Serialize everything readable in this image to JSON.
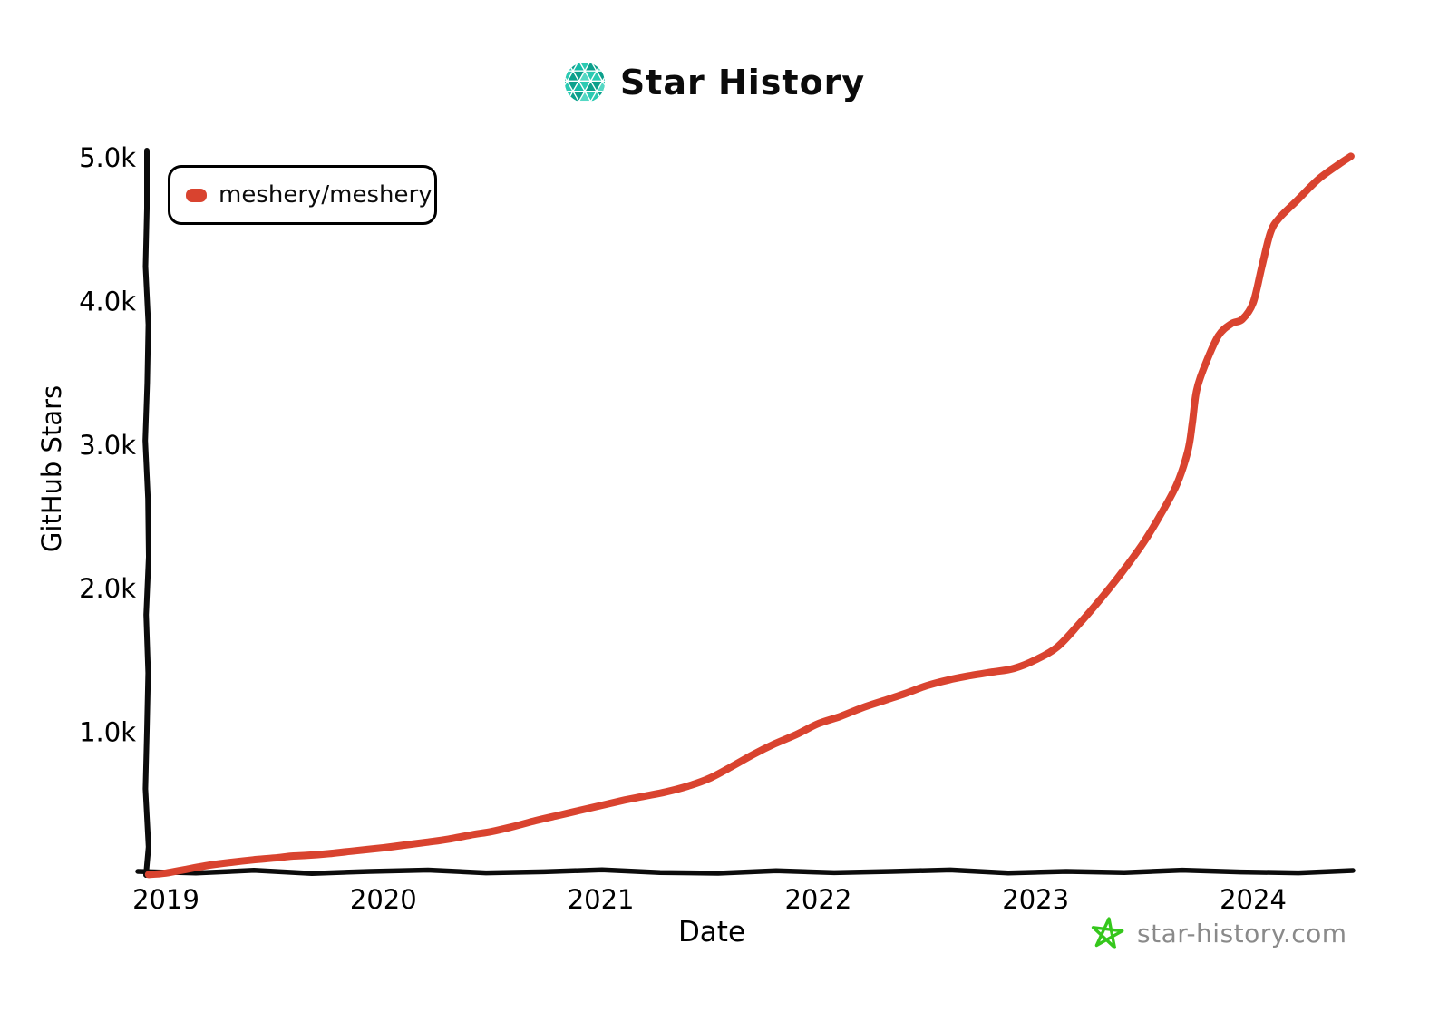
{
  "header": {
    "title": "Star History",
    "logo_icon": "star-history-logo-icon",
    "logo_palette": [
      "#16bca7",
      "#0ca08c",
      "#55d8c4",
      "#2bcab2"
    ]
  },
  "legend": {
    "series_label": "meshery/meshery",
    "marker_color": "#d9432f"
  },
  "footer": {
    "site": "star-history.com",
    "star_icon": "star-doodle-icon",
    "star_icon_color": "#35c71c",
    "text_color": "#8a8a8a"
  },
  "colors": {
    "series_red": "#d9432f",
    "axis_black": "#0b0b0b",
    "brand_teal": "#16bca7"
  },
  "chart_data": {
    "type": "line",
    "title": "Star History",
    "xlabel": "Date",
    "ylabel": "GitHub Stars",
    "grid": false,
    "legend_position": "top-left",
    "x_ticks": [
      2019,
      2020,
      2021,
      2022,
      2023,
      2024
    ],
    "y_ticks": [
      {
        "label": "1.0k",
        "value": 1000
      },
      {
        "label": "2.0k",
        "value": 2000
      },
      {
        "label": "3.0k",
        "value": 3000
      },
      {
        "label": "4.0k",
        "value": 4000
      },
      {
        "label": "5.0k",
        "value": 5000
      }
    ],
    "xlim": [
      2018.92,
      2024.5
    ],
    "ylim": [
      0,
      5100
    ],
    "series": [
      {
        "name": "meshery/meshery",
        "color": "#d9432f",
        "points": [
          [
            2018.92,
            10
          ],
          [
            2019.0,
            20
          ],
          [
            2019.1,
            48
          ],
          [
            2019.2,
            75
          ],
          [
            2019.3,
            95
          ],
          [
            2019.4,
            112
          ],
          [
            2019.5,
            125
          ],
          [
            2019.58,
            138
          ],
          [
            2019.65,
            143
          ],
          [
            2019.75,
            155
          ],
          [
            2019.85,
            172
          ],
          [
            2020.0,
            196
          ],
          [
            2020.1,
            215
          ],
          [
            2020.2,
            235
          ],
          [
            2020.3,
            256
          ],
          [
            2020.4,
            285
          ],
          [
            2020.5,
            310
          ],
          [
            2020.6,
            345
          ],
          [
            2020.7,
            385
          ],
          [
            2020.8,
            420
          ],
          [
            2020.9,
            455
          ],
          [
            2021.0,
            490
          ],
          [
            2021.1,
            525
          ],
          [
            2021.2,
            555
          ],
          [
            2021.3,
            585
          ],
          [
            2021.4,
            625
          ],
          [
            2021.5,
            680
          ],
          [
            2021.6,
            760
          ],
          [
            2021.7,
            845
          ],
          [
            2021.8,
            920
          ],
          [
            2021.9,
            985
          ],
          [
            2022.0,
            1060
          ],
          [
            2022.1,
            1110
          ],
          [
            2022.2,
            1170
          ],
          [
            2022.3,
            1220
          ],
          [
            2022.4,
            1270
          ],
          [
            2022.5,
            1325
          ],
          [
            2022.6,
            1365
          ],
          [
            2022.7,
            1395
          ],
          [
            2022.8,
            1420
          ],
          [
            2022.9,
            1445
          ],
          [
            2023.0,
            1505
          ],
          [
            2023.1,
            1595
          ],
          [
            2023.2,
            1755
          ],
          [
            2023.3,
            1930
          ],
          [
            2023.4,
            2120
          ],
          [
            2023.5,
            2330
          ],
          [
            2023.58,
            2530
          ],
          [
            2023.65,
            2730
          ],
          [
            2023.7,
            2960
          ],
          [
            2023.72,
            3150
          ],
          [
            2023.74,
            3380
          ],
          [
            2023.78,
            3560
          ],
          [
            2023.84,
            3760
          ],
          [
            2023.9,
            3845
          ],
          [
            2023.95,
            3875
          ],
          [
            2024.0,
            3990
          ],
          [
            2024.04,
            4240
          ],
          [
            2024.08,
            4480
          ],
          [
            2024.12,
            4580
          ],
          [
            2024.2,
            4700
          ],
          [
            2024.3,
            4850
          ],
          [
            2024.4,
            4960
          ],
          [
            2024.45,
            5010
          ]
        ]
      }
    ]
  }
}
